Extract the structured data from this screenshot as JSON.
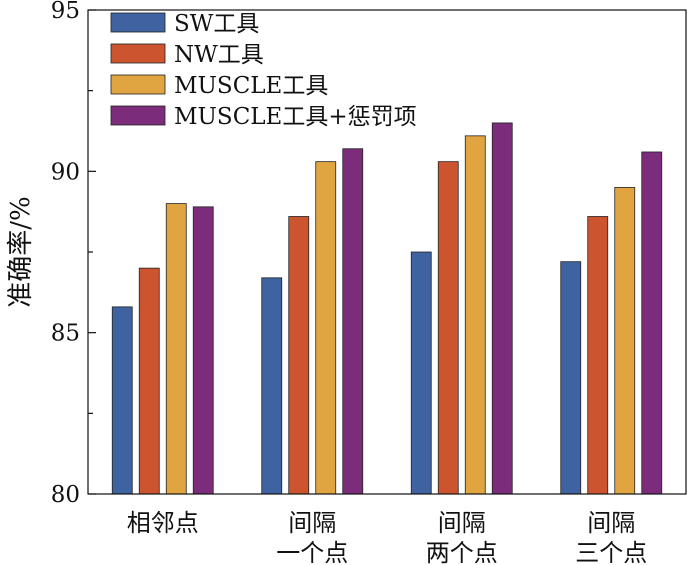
{
  "chart_data": {
    "type": "bar",
    "title": "",
    "xlabel": "",
    "ylabel": "准确率/%",
    "ylim": [
      80,
      95
    ],
    "yticks": [
      80,
      85,
      90,
      95
    ],
    "grid": false,
    "legend_position": "top-left",
    "categories": [
      [
        "相邻点"
      ],
      [
        "间隔",
        "一个点"
      ],
      [
        "间隔",
        "两个点"
      ],
      [
        "间隔",
        "三个点"
      ]
    ],
    "series": [
      {
        "name": "SW工具",
        "color": "#3f62a0",
        "values": [
          85.8,
          86.7,
          87.5,
          87.2
        ]
      },
      {
        "name": "NW工具",
        "color": "#cc5530",
        "values": [
          87.0,
          88.6,
          90.3,
          88.6
        ]
      },
      {
        "name": "MUSCLE工具",
        "color": "#e0a540",
        "values": [
          89.0,
          90.3,
          91.1,
          89.5
        ]
      },
      {
        "name": "MUSCLE工具+惩罚项",
        "color": "#7b2d7c",
        "values": [
          88.9,
          90.7,
          91.5,
          90.6
        ]
      }
    ]
  }
}
